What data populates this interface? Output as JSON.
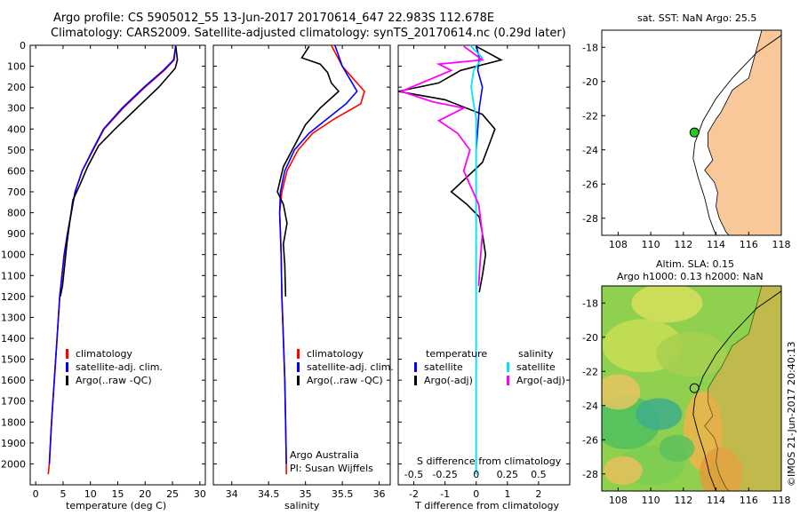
{
  "title_line1": "Argo profile: CS 5905012_55 13-Jun-2017 20170614_647 22.983S 112.678E",
  "title_line2": "Climatology: CARS2009. Satellite-adjusted climatology: synTS_20170614.nc (0.29d later)",
  "colors": {
    "climatology": "#ff0000",
    "satellite": "#0000ff",
    "argo": "#000000",
    "salinity_sat": "#00e5ff",
    "salinity_argo": "#ff00ff",
    "land": "#f8c89a",
    "marker_green": "#22cc22"
  },
  "temp_panel": {
    "xlabel": "temperature (deg C)",
    "legend": [
      "climatology",
      "satellite-adj. clim.",
      "Argo(..raw -QC)"
    ]
  },
  "sal_panel": {
    "xlabel": "salinity",
    "legend": [
      "climatology",
      "satellite-adj. clim.",
      "Argo(..raw -QC)"
    ],
    "note1": "Argo Australia",
    "note2": "PI: Susan Wijffels"
  },
  "diff_panel": {
    "xlabel": "T difference from climatology",
    "top_label": "S difference from climatology",
    "top_ticks": [
      "-0.5",
      "-0.25",
      "0",
      "0.25",
      "0.5"
    ],
    "legend_left_title": "temperature",
    "legend_left": [
      "satellite",
      "Argo(-adj)"
    ],
    "legend_right_title": "salinity",
    "legend_right": [
      "satellite",
      "Argo(-adj)"
    ]
  },
  "map_top": {
    "title": "sat. SST: NaN Argo: 25.5"
  },
  "map_bottom": {
    "title1": "Altim. SLA: 0.15",
    "title2": "Argo h1000: 0.13 h2000: NaN"
  },
  "credit": "©IMOS 21-Jun-2017 20:40:13",
  "chart_data": [
    {
      "type": "line",
      "name": "temperature profile",
      "xlabel": "temperature (deg C)",
      "ylabel": "",
      "xlim": [
        -1,
        31
      ],
      "ylim": [
        2100,
        0
      ],
      "xticks": [
        0,
        5,
        10,
        15,
        20,
        25,
        30
      ],
      "yticks": [
        0,
        100,
        200,
        300,
        400,
        500,
        600,
        700,
        800,
        900,
        1000,
        1100,
        1200,
        1300,
        1400,
        1500,
        1600,
        1700,
        1800,
        1900,
        2000
      ],
      "series": [
        {
          "name": "climatology",
          "color": "#ff0000",
          "x": [
            25.6,
            25.3,
            23.5,
            20,
            16,
            12.5,
            10.5,
            8.5,
            7.2,
            6.5,
            5.8,
            5.2,
            4.8,
            4.4,
            3.9,
            3.4,
            2.9,
            2.5,
            2.3
          ],
          "y": [
            0,
            70,
            120,
            200,
            300,
            400,
            500,
            600,
            700,
            800,
            900,
            1000,
            1100,
            1200,
            1400,
            1600,
            1800,
            2000,
            2050
          ]
        },
        {
          "name": "satellite-adj. clim.",
          "color": "#0000ff",
          "x": [
            25.6,
            25.2,
            23.3,
            19.8,
            15.8,
            12.4,
            10.4,
            8.5,
            7.2,
            6.5,
            5.8,
            5.2,
            4.8,
            4.4,
            3.9,
            3.4,
            2.9,
            2.5
          ],
          "y": [
            0,
            70,
            120,
            200,
            300,
            400,
            500,
            600,
            700,
            800,
            900,
            1000,
            1100,
            1200,
            1400,
            1600,
            1800,
            2000
          ]
        },
        {
          "name": "Argo(..raw -QC)",
          "color": "#000000",
          "x": [
            25.6,
            25.9,
            25.5,
            22.5,
            18.5,
            14.5,
            11.5,
            9.5,
            8.2,
            6.8,
            6.2,
            5.7,
            5.3,
            4.9,
            4.5
          ],
          "y": [
            5,
            70,
            110,
            200,
            300,
            400,
            480,
            580,
            660,
            740,
            850,
            950,
            1050,
            1150,
            1200
          ]
        }
      ]
    },
    {
      "type": "line",
      "name": "salinity profile",
      "xlabel": "salinity",
      "ylabel": "",
      "xlim": [
        33.75,
        36.15
      ],
      "ylim": [
        2100,
        0
      ],
      "xticks": [
        34,
        34.5,
        35,
        35.5,
        36
      ],
      "series": [
        {
          "name": "climatology",
          "color": "#ff0000",
          "x": [
            35.35,
            35.5,
            35.65,
            35.8,
            35.75,
            35.4,
            35.1,
            34.9,
            34.75,
            34.68,
            34.65,
            34.66,
            34.67,
            34.68,
            34.7,
            34.72,
            34.73,
            34.74,
            34.74
          ],
          "y": [
            0,
            100,
            160,
            220,
            280,
            350,
            420,
            500,
            600,
            700,
            800,
            900,
            1000,
            1200,
            1400,
            1600,
            1800,
            2000,
            2050
          ]
        },
        {
          "name": "satellite-adj. clim.",
          "color": "#0000ff",
          "x": [
            35.4,
            35.5,
            35.6,
            35.7,
            35.55,
            35.3,
            35.05,
            34.85,
            34.72,
            34.66,
            34.65,
            34.66,
            34.67,
            34.68,
            34.7,
            34.72,
            34.73,
            34.74
          ],
          "y": [
            0,
            100,
            160,
            220,
            280,
            350,
            420,
            500,
            600,
            700,
            800,
            900,
            1000,
            1200,
            1400,
            1600,
            1800,
            2000
          ]
        },
        {
          "name": "Argo(..raw -QC)",
          "color": "#000000",
          "x": [
            35.05,
            34.95,
            35.2,
            35.3,
            35.35,
            35.45,
            35.2,
            35.0,
            34.85,
            34.7,
            34.62,
            34.7,
            34.75,
            34.7,
            34.72,
            34.73
          ],
          "y": [
            5,
            60,
            90,
            130,
            180,
            220,
            300,
            380,
            480,
            580,
            700,
            760,
            850,
            950,
            1050,
            1200
          ]
        }
      ]
    },
    {
      "type": "line",
      "name": "difference from climatology",
      "xlabel": "T difference from climatology",
      "x2label": "S difference from climatology",
      "xlim": [
        -2.5,
        3
      ],
      "x2lim": [
        -0.625,
        0.75
      ],
      "ylim": [
        2100,
        0
      ],
      "xticks": [
        -2,
        -1,
        0,
        1,
        2
      ],
      "x2ticks": [
        -0.5,
        -0.25,
        0,
        0.25,
        0.5
      ],
      "series": [
        {
          "name": "temperature satellite",
          "color": "#0000ff",
          "x": [
            0,
            0.1,
            0.05,
            0.2,
            0.1,
            0.05,
            0,
            0,
            0,
            0,
            0,
            0,
            0,
            0
          ],
          "y": [
            0,
            60,
            120,
            200,
            300,
            400,
            500,
            600,
            800,
            1000,
            1200,
            1500,
            1800,
            2050
          ]
        },
        {
          "name": "temperature Argo(-adj)",
          "color": "#000000",
          "x": [
            0,
            0.8,
            -0.5,
            -1.2,
            -2.5,
            -1.0,
            0.2,
            0.6,
            0.4,
            0.2,
            -0.8,
            -0.3,
            0.1,
            0.2,
            0.3,
            0.2,
            0.1
          ],
          "y": [
            5,
            70,
            120,
            180,
            220,
            260,
            330,
            400,
            480,
            560,
            700,
            760,
            820,
            900,
            1000,
            1100,
            1180
          ]
        },
        {
          "name": "salinity satellite",
          "color": "#00e5ff",
          "x": [
            -0.05,
            0.05,
            -0.02,
            -0.04,
            -0.02,
            0,
            0,
            0,
            0,
            0,
            0,
            0,
            0,
            0
          ],
          "y": [
            0,
            60,
            120,
            200,
            280,
            350,
            420,
            500,
            600,
            800,
            1000,
            1400,
            1800,
            2050
          ]
        },
        {
          "name": "salinity Argo(-adj)",
          "color": "#ff00ff",
          "x": [
            -0.1,
            0.05,
            -0.3,
            -0.2,
            -0.6,
            -0.35,
            -0.1,
            -0.3,
            -0.15,
            -0.05,
            -0.1,
            0.02,
            0.05,
            0.03,
            0.02
          ],
          "y": [
            5,
            70,
            90,
            120,
            220,
            270,
            300,
            360,
            420,
            500,
            600,
            760,
            900,
            1050,
            1150
          ]
        }
      ]
    }
  ],
  "map_top_data": {
    "xlim": [
      107,
      118
    ],
    "ylim": [
      -29,
      -17
    ],
    "xticks": [
      108,
      110,
      112,
      114,
      116,
      118
    ],
    "yticks": [
      -18,
      -20,
      -22,
      -24,
      -26,
      -28
    ],
    "point": {
      "lon": 112.678,
      "lat": -22.983
    }
  },
  "map_bottom_data": {
    "xlim": [
      107,
      118
    ],
    "ylim": [
      -29,
      -17
    ],
    "xticks": [
      108,
      110,
      112,
      114,
      116,
      118
    ],
    "yticks": [
      -18,
      -20,
      -22,
      -24,
      -26,
      -28
    ],
    "point": {
      "lon": 112.678,
      "lat": -22.983
    }
  }
}
